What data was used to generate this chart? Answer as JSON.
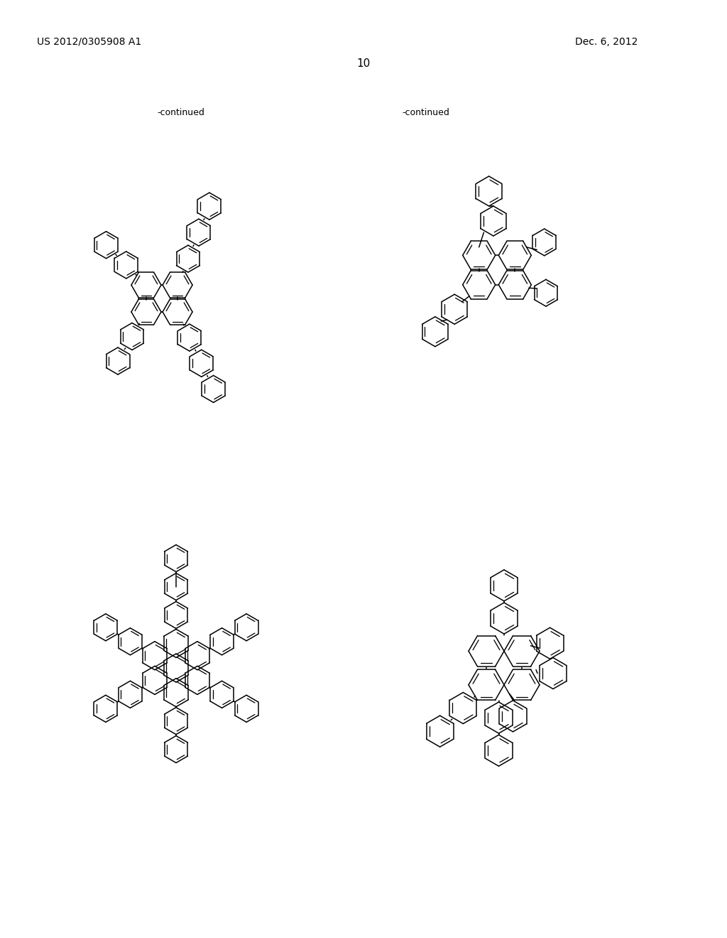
{
  "page_number": "10",
  "patent_number": "US 2012/0305908 A1",
  "patent_date": "Dec. 6, 2012",
  "continued_label": "-continued",
  "background_color": "#ffffff",
  "line_color": "#000000",
  "text_color": "#000000",
  "font_size_header": 10,
  "font_size_page": 11,
  "font_size_continued": 9
}
